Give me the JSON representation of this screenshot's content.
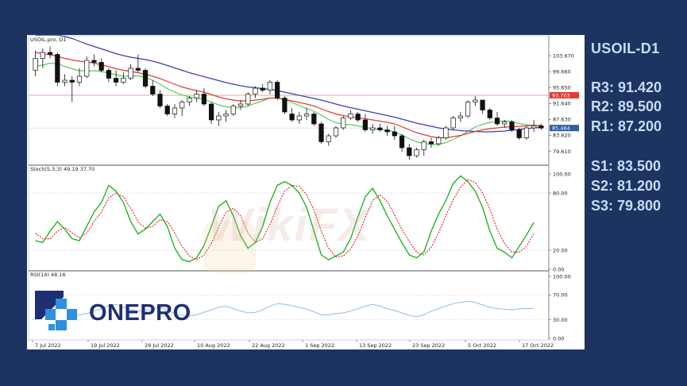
{
  "symbol_title": "USOIL-D1",
  "levels": [
    {
      "label": "R3",
      "value": "91.420"
    },
    {
      "label": "R2",
      "value": "89.500"
    },
    {
      "label": "R1",
      "value": "87.200"
    },
    {
      "label": "S1",
      "value": "83.500"
    },
    {
      "label": "S2",
      "value": "81.200"
    },
    {
      "label": "S3",
      "value": "79.800"
    }
  ],
  "logo_text": "ONEPRO",
  "watermark_text": "WikiFX",
  "colors": {
    "background": "#1d3461",
    "level_text": "#c6dcf6",
    "ma_fast": "#e03c3c",
    "ma_slow": "#3a3fb0",
    "ma_green": "#5cc95c",
    "stoch_k": "#16b016",
    "stoch_d": "#e02020",
    "rsi": "#8fbce8",
    "price_tag_red": "#e53935",
    "price_tag_blue": "#2f5fa0",
    "logo_blue": "#1f2f73",
    "logo_cyan": "#2f8fe0"
  },
  "chart_data": [
    {
      "type": "candlestick",
      "title": "USOIL.pro, D1",
      "ylim": [
        76.5,
        106.5
      ],
      "y_ticks": [
        "103.670",
        "99.660",
        "95.650",
        "91.640",
        "87.630",
        "83.620",
        "79.610"
      ],
      "x_ticks": [
        "7 Jul 2022",
        "19 Jul 2022",
        "29 Jul 2022",
        "10 Aug 2022",
        "22 Aug 2022",
        "1 Sep 2022",
        "13 Sep 2022",
        "23 Sep 2022",
        "5 Oct 2022",
        "17 Oct 2022"
      ],
      "hline_red": 93.703,
      "hline_red_label": "93.703",
      "last_price": 85.464,
      "last_price_label": "85.464",
      "candles": [
        {
          "o": 100.0,
          "h": 105.0,
          "l": 98.5,
          "c": 103.0
        },
        {
          "o": 103.0,
          "h": 105.5,
          "l": 100.5,
          "c": 104.5
        },
        {
          "o": 104.5,
          "h": 106.0,
          "l": 103.0,
          "c": 104.0
        },
        {
          "o": 104.0,
          "h": 104.5,
          "l": 96.0,
          "c": 97.0
        },
        {
          "o": 97.0,
          "h": 99.0,
          "l": 96.0,
          "c": 97.5
        },
        {
          "o": 97.5,
          "h": 98.5,
          "l": 92.0,
          "c": 97.0
        },
        {
          "o": 97.0,
          "h": 100.5,
          "l": 96.0,
          "c": 98.5
        },
        {
          "o": 98.5,
          "h": 103.5,
          "l": 98.0,
          "c": 102.5
        },
        {
          "o": 102.5,
          "h": 104.0,
          "l": 101.0,
          "c": 102.0
        },
        {
          "o": 102.0,
          "h": 103.0,
          "l": 99.5,
          "c": 100.0
        },
        {
          "o": 100.0,
          "h": 100.5,
          "l": 97.0,
          "c": 98.0
        },
        {
          "o": 98.0,
          "h": 100.0,
          "l": 96.0,
          "c": 97.0
        },
        {
          "o": 97.0,
          "h": 99.5,
          "l": 96.5,
          "c": 98.0
        },
        {
          "o": 98.0,
          "h": 101.5,
          "l": 97.5,
          "c": 100.5
        },
        {
          "o": 100.5,
          "h": 104.0,
          "l": 99.5,
          "c": 100.0
        },
        {
          "o": 100.0,
          "h": 100.5,
          "l": 95.5,
          "c": 96.0
        },
        {
          "o": 96.0,
          "h": 97.5,
          "l": 93.5,
          "c": 94.0
        },
        {
          "o": 94.0,
          "h": 95.0,
          "l": 90.5,
          "c": 91.0
        },
        {
          "o": 91.0,
          "h": 91.5,
          "l": 88.5,
          "c": 89.0
        },
        {
          "o": 89.0,
          "h": 91.5,
          "l": 88.0,
          "c": 90.5
        },
        {
          "o": 90.5,
          "h": 92.5,
          "l": 88.5,
          "c": 92.0
        },
        {
          "o": 92.0,
          "h": 93.5,
          "l": 91.0,
          "c": 93.0
        },
        {
          "o": 93.0,
          "h": 95.0,
          "l": 92.0,
          "c": 94.0
        },
        {
          "o": 94.0,
          "h": 95.5,
          "l": 91.0,
          "c": 91.5
        },
        {
          "o": 91.5,
          "h": 92.0,
          "l": 86.5,
          "c": 87.5
        },
        {
          "o": 87.5,
          "h": 89.5,
          "l": 86.0,
          "c": 88.5
        },
        {
          "o": 88.5,
          "h": 90.0,
          "l": 87.0,
          "c": 89.0
        },
        {
          "o": 89.0,
          "h": 91.5,
          "l": 88.5,
          "c": 91.0
        },
        {
          "o": 91.0,
          "h": 92.5,
          "l": 90.0,
          "c": 91.5
        },
        {
          "o": 91.5,
          "h": 94.5,
          "l": 91.0,
          "c": 94.0
        },
        {
          "o": 94.0,
          "h": 96.0,
          "l": 93.0,
          "c": 95.5
        },
        {
          "o": 95.5,
          "h": 96.5,
          "l": 94.5,
          "c": 95.0
        },
        {
          "o": 95.0,
          "h": 97.5,
          "l": 94.0,
          "c": 97.0
        },
        {
          "o": 97.0,
          "h": 97.5,
          "l": 92.5,
          "c": 93.0
        },
        {
          "o": 93.0,
          "h": 93.5,
          "l": 89.0,
          "c": 89.5
        },
        {
          "o": 89.0,
          "h": 90.5,
          "l": 87.0,
          "c": 87.5
        },
        {
          "o": 87.5,
          "h": 89.5,
          "l": 86.5,
          "c": 88.5
        },
        {
          "o": 88.5,
          "h": 90.5,
          "l": 87.5,
          "c": 89.0
        },
        {
          "o": 89.0,
          "h": 89.5,
          "l": 86.0,
          "c": 86.5
        },
        {
          "o": 86.5,
          "h": 87.0,
          "l": 81.5,
          "c": 82.0
        },
        {
          "o": 82.0,
          "h": 84.0,
          "l": 81.0,
          "c": 83.5
        },
        {
          "o": 83.5,
          "h": 86.0,
          "l": 83.0,
          "c": 85.5
        },
        {
          "o": 85.5,
          "h": 88.5,
          "l": 85.0,
          "c": 88.0
        },
        {
          "o": 88.0,
          "h": 90.0,
          "l": 87.5,
          "c": 89.0
        },
        {
          "o": 89.0,
          "h": 89.5,
          "l": 87.0,
          "c": 87.5
        },
        {
          "o": 87.5,
          "h": 89.0,
          "l": 84.5,
          "c": 85.0
        },
        {
          "o": 85.0,
          "h": 86.5,
          "l": 84.0,
          "c": 85.5
        },
        {
          "o": 85.5,
          "h": 86.5,
          "l": 84.5,
          "c": 85.0
        },
        {
          "o": 85.0,
          "h": 86.0,
          "l": 83.5,
          "c": 84.5
        },
        {
          "o": 84.5,
          "h": 86.0,
          "l": 82.5,
          "c": 83.5
        },
        {
          "o": 83.5,
          "h": 84.0,
          "l": 79.5,
          "c": 80.5
        },
        {
          "o": 80.5,
          "h": 81.5,
          "l": 77.5,
          "c": 78.5
        },
        {
          "o": 78.5,
          "h": 80.5,
          "l": 78.0,
          "c": 80.0
        },
        {
          "o": 80.0,
          "h": 82.5,
          "l": 78.5,
          "c": 82.0
        },
        {
          "o": 82.0,
          "h": 83.0,
          "l": 80.5,
          "c": 81.5
        },
        {
          "o": 81.5,
          "h": 83.5,
          "l": 81.0,
          "c": 83.0
        },
        {
          "o": 83.0,
          "h": 86.0,
          "l": 82.5,
          "c": 85.5
        },
        {
          "o": 85.5,
          "h": 88.5,
          "l": 85.0,
          "c": 88.0
        },
        {
          "o": 88.0,
          "h": 89.5,
          "l": 87.0,
          "c": 88.5
        },
        {
          "o": 88.5,
          "h": 92.5,
          "l": 88.0,
          "c": 92.0
        },
        {
          "o": 92.0,
          "h": 93.5,
          "l": 91.0,
          "c": 92.5
        },
        {
          "o": 92.5,
          "h": 92.5,
          "l": 89.0,
          "c": 90.0
        },
        {
          "o": 90.0,
          "h": 90.5,
          "l": 87.5,
          "c": 88.0
        },
        {
          "o": 88.0,
          "h": 89.5,
          "l": 86.0,
          "c": 86.5
        },
        {
          "o": 86.5,
          "h": 87.5,
          "l": 85.5,
          "c": 87.0
        },
        {
          "o": 87.0,
          "h": 87.5,
          "l": 84.5,
          "c": 85.0
        },
        {
          "o": 85.0,
          "h": 85.5,
          "l": 82.5,
          "c": 83.0
        },
        {
          "o": 83.0,
          "h": 86.0,
          "l": 82.5,
          "c": 85.5
        },
        {
          "o": 85.5,
          "h": 87.5,
          "l": 84.5,
          "c": 86.0
        },
        {
          "o": 86.0,
          "h": 86.5,
          "l": 85.0,
          "c": 85.464
        }
      ],
      "ma_red": [
        104.5,
        104.2,
        103.9,
        103.5,
        103.0,
        102.6,
        102.3,
        102.1,
        101.8,
        101.4,
        100.9,
        100.4,
        100.0,
        99.7,
        99.4,
        99.0,
        98.5,
        97.9,
        97.2,
        96.5,
        95.8,
        95.3,
        94.9,
        94.5,
        93.9,
        93.3,
        92.8,
        92.5,
        92.3,
        92.3,
        92.5,
        92.7,
        93.0,
        93.0,
        92.7,
        92.3,
        91.9,
        91.5,
        91.0,
        90.3,
        89.6,
        89.0,
        88.6,
        88.3,
        88.0,
        87.8,
        87.5,
        87.2,
        86.9,
        86.5,
        85.8,
        85.0,
        84.3,
        83.8,
        83.3,
        83.0,
        83.0,
        83.3,
        83.6,
        84.1,
        84.6,
        85.0,
        85.3,
        85.5,
        85.7,
        85.8,
        85.9,
        86.0,
        86.1,
        86.1
      ],
      "ma_blue": [
        110,
        110,
        109.5,
        109,
        108.5,
        108,
        107.3,
        106.6,
        106.0,
        105.4,
        104.8,
        104.2,
        103.7,
        103.3,
        103.0,
        102.7,
        102.3,
        101.8,
        101.2,
        100.6,
        100.0,
        99.4,
        98.9,
        98.4,
        97.9,
        97.4,
        96.9,
        96.5,
        96.1,
        95.8,
        95.6,
        95.4,
        95.2,
        94.9,
        94.5,
        94.1,
        93.7,
        93.3,
        92.9,
        92.5,
        92.0,
        91.5,
        91.0,
        90.6,
        90.2,
        89.8,
        89.4,
        89.0,
        88.6,
        88.2,
        87.7,
        87.2,
        86.7,
        86.3,
        85.9,
        85.5,
        85.2,
        85.0,
        84.8,
        84.7,
        84.6,
        84.5,
        84.5,
        84.6,
        84.7,
        84.9,
        85.1,
        85.3,
        85.5,
        85.6
      ],
      "ma_green": [
        101.0,
        101.3,
        101.8,
        101.7,
        101.0,
        100.4,
        99.9,
        99.8,
        99.9,
        99.7,
        99.3,
        98.9,
        98.5,
        98.5,
        98.6,
        98.2,
        97.5,
        96.5,
        95.4,
        94.5,
        93.8,
        93.3,
        93.0,
        92.7,
        92.0,
        91.3,
        90.8,
        90.6,
        90.6,
        91.0,
        91.7,
        92.3,
        93.0,
        93.0,
        92.6,
        91.9,
        91.1,
        90.4,
        89.7,
        88.7,
        87.6,
        86.8,
        86.4,
        86.3,
        86.0,
        85.6,
        85.3,
        85.1,
        84.9,
        84.5,
        83.7,
        82.8,
        82.0,
        81.6,
        81.3,
        81.3,
        81.8,
        82.6,
        83.5,
        84.6,
        85.7,
        86.4,
        86.9,
        87.1,
        87.3,
        87.1,
        86.6,
        86.3,
        86.1,
        85.9
      ]
    },
    {
      "type": "line",
      "title": "Stoch(5,3,3) 49.19 37.70",
      "ylim": [
        0,
        100
      ],
      "y_ticks": [
        "100.00",
        "80.00",
        "20.00",
        "0.00"
      ],
      "series": [
        {
          "values": [
            30,
            28,
            40,
            50,
            42,
            32,
            30,
            45,
            60,
            70,
            88,
            82,
            70,
            50,
            37,
            42,
            50,
            58,
            45,
            22,
            10,
            8,
            12,
            25,
            45,
            66,
            72,
            56,
            35,
            22,
            28,
            45,
            70,
            88,
            92,
            88,
            80,
            65,
            40,
            15,
            10,
            14,
            18,
            32,
            55,
            76,
            85,
            72,
            56,
            42,
            28,
            15,
            12,
            18,
            40,
            58,
            72,
            90,
            98,
            92,
            82,
            65,
            40,
            22,
            18,
            12,
            24,
            36,
            49.19
          ]
        },
        {
          "values": [
            38,
            32,
            32,
            40,
            44,
            38,
            33,
            38,
            50,
            60,
            75,
            80,
            76,
            64,
            50,
            43,
            45,
            52,
            50,
            38,
            24,
            14,
            10,
            15,
            27,
            44,
            60,
            64,
            56,
            38,
            28,
            32,
            47,
            66,
            82,
            88,
            87,
            78,
            62,
            40,
            22,
            13,
            14,
            21,
            35,
            54,
            72,
            78,
            71,
            57,
            42,
            29,
            18,
            15,
            23,
            38,
            56,
            73,
            86,
            94,
            91,
            80,
            63,
            42,
            27,
            18,
            18,
            24,
            37.7
          ]
        }
      ]
    },
    {
      "type": "line",
      "title": "RSI(14) 48.16",
      "ylim": [
        0,
        100
      ],
      "y_ticks": [
        "100.00",
        "70.00",
        "30.00",
        "0.00"
      ],
      "series": [
        {
          "values": [
            38,
            40,
            42,
            44,
            42,
            40,
            38,
            40,
            44,
            48,
            53,
            55,
            50,
            46,
            44,
            45,
            47,
            50,
            46,
            40,
            37,
            36,
            38,
            42,
            46,
            50,
            52,
            48,
            44,
            41,
            42,
            46,
            52,
            56,
            55,
            53,
            50,
            47,
            43,
            38,
            38,
            40,
            41,
            44,
            48,
            52,
            55,
            52,
            48,
            45,
            41,
            37,
            35,
            38,
            44,
            48,
            52,
            56,
            58,
            60,
            58,
            54,
            50,
            48,
            47,
            46,
            48,
            48,
            48.16
          ]
        }
      ]
    }
  ]
}
